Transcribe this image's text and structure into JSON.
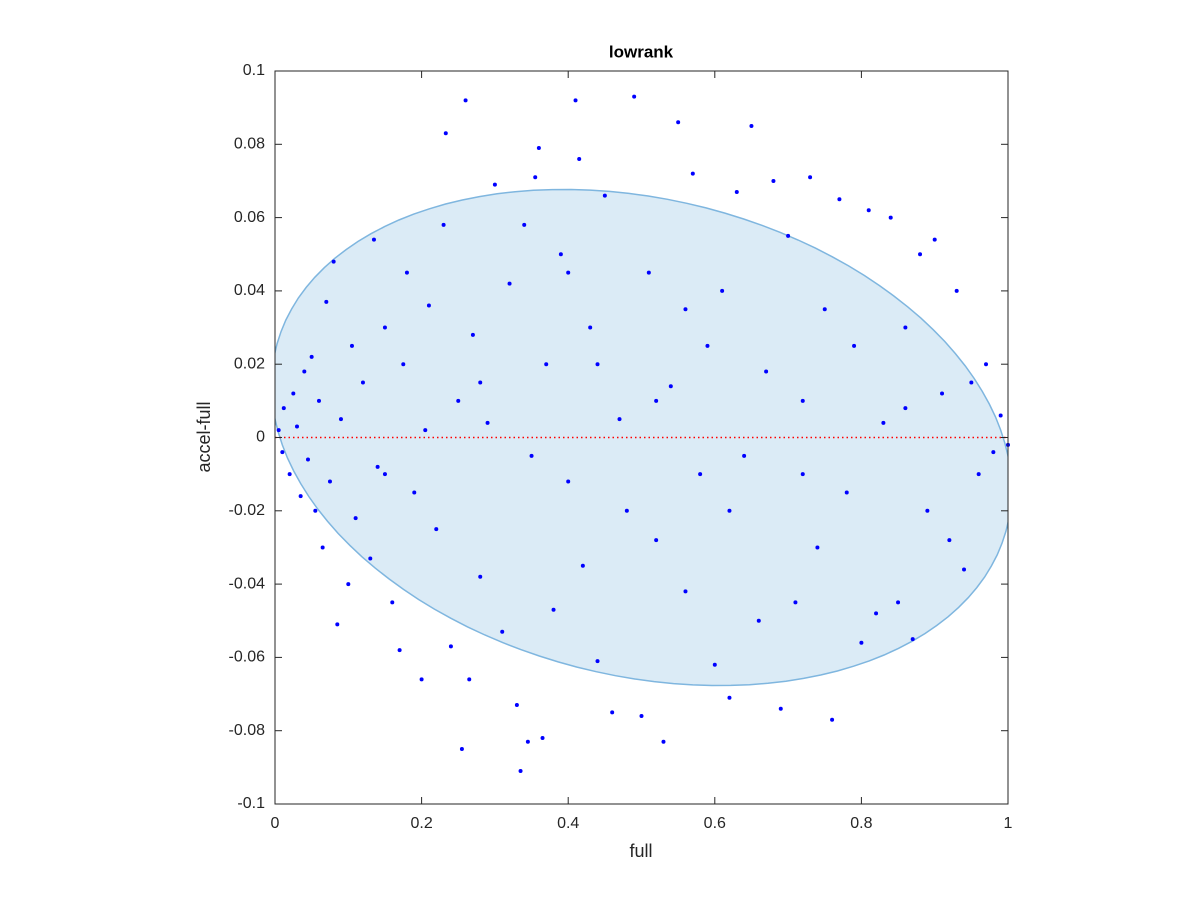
{
  "chart_data": {
    "type": "scatter",
    "title": "lowrank",
    "x_label": "full",
    "y_label": "accel-full",
    "xlim": [
      0,
      1
    ],
    "xticks": [
      0,
      0.2,
      0.4,
      0.6,
      0.8,
      1
    ],
    "ylim": [
      -0.1,
      0.1
    ],
    "yticks": [
      -0.1,
      -0.08,
      -0.06,
      -0.04,
      -0.02,
      0,
      0.02,
      0.04,
      0.06,
      0.08,
      0.1
    ],
    "color": "#0000ff",
    "reference_line": {
      "y": 0,
      "color": "#ff0000"
    },
    "ellipse": {
      "center": [
        0.5,
        0
      ],
      "u": [
        0.5,
        -0.005
      ],
      "v": [
        -0.07,
        0.0675
      ],
      "color": "#7fb6df"
    },
    "x": [
      0.005,
      0.01,
      0.012,
      0.02,
      0.025,
      0.03,
      0.035,
      0.04,
      0.045,
      0.05,
      0.055,
      0.06,
      0.065,
      0.07,
      0.075,
      0.08,
      0.085,
      0.09,
      0.1,
      0.105,
      0.11,
      0.12,
      0.13,
      0.135,
      0.14,
      0.15,
      0.16,
      0.17,
      0.175,
      0.18,
      0.19,
      0.2,
      0.205,
      0.21,
      0.22,
      0.23,
      0.233,
      0.24,
      0.25,
      0.255,
      0.26,
      0.265,
      0.27,
      0.28,
      0.29,
      0.3,
      0.31,
      0.32,
      0.33,
      0.335,
      0.34,
      0.345,
      0.355,
      0.36,
      0.365,
      0.37,
      0.38,
      0.39,
      0.4,
      0.41,
      0.415,
      0.42,
      0.43,
      0.44,
      0.45,
      0.46,
      0.47,
      0.48,
      0.49,
      0.5,
      0.51,
      0.52,
      0.53,
      0.54,
      0.55,
      0.56,
      0.57,
      0.58,
      0.59,
      0.6,
      0.61,
      0.62,
      0.63,
      0.64,
      0.65,
      0.66,
      0.67,
      0.68,
      0.69,
      0.7,
      0.71,
      0.72,
      0.73,
      0.74,
      0.75,
      0.76,
      0.77,
      0.78,
      0.79,
      0.8,
      0.81,
      0.82,
      0.83,
      0.84,
      0.85,
      0.86,
      0.87,
      0.88,
      0.89,
      0.9,
      0.91,
      0.92,
      0.93,
      0.94,
      0.95,
      0.96,
      0.97,
      0.98,
      0.99,
      1.0,
      0.52,
      0.44,
      0.35,
      0.62,
      0.28,
      0.72,
      0.15,
      0.86,
      0.56,
      0.4
    ],
    "y": [
      0.002,
      -0.004,
      0.008,
      -0.01,
      0.012,
      0.003,
      -0.016,
      0.018,
      -0.006,
      0.022,
      -0.02,
      0.01,
      -0.03,
      0.037,
      -0.012,
      0.048,
      -0.051,
      0.005,
      -0.04,
      0.025,
      -0.022,
      0.015,
      -0.033,
      0.054,
      -0.008,
      0.03,
      -0.045,
      -0.058,
      0.02,
      0.045,
      -0.015,
      -0.066,
      0.002,
      0.036,
      -0.025,
      0.058,
      0.083,
      -0.057,
      0.01,
      -0.085,
      0.092,
      -0.066,
      0.028,
      -0.038,
      0.004,
      0.069,
      -0.053,
      0.042,
      -0.073,
      -0.091,
      0.058,
      -0.083,
      0.071,
      0.079,
      -0.082,
      0.02,
      -0.047,
      0.05,
      -0.012,
      0.092,
      0.076,
      -0.035,
      0.03,
      -0.061,
      0.066,
      -0.075,
      0.005,
      -0.02,
      0.093,
      -0.076,
      0.045,
      -0.028,
      -0.083,
      0.014,
      0.086,
      -0.042,
      0.072,
      -0.01,
      0.025,
      -0.062,
      0.04,
      -0.071,
      0.067,
      -0.005,
      0.085,
      -0.05,
      0.018,
      0.07,
      -0.074,
      0.055,
      -0.045,
      0.01,
      0.071,
      -0.03,
      0.035,
      -0.077,
      0.065,
      -0.015,
      0.025,
      -0.056,
      0.062,
      -0.048,
      0.004,
      0.06,
      -0.045,
      0.03,
      -0.055,
      0.05,
      -0.02,
      0.054,
      0.012,
      -0.028,
      0.04,
      -0.036,
      0.015,
      -0.01,
      0.02,
      -0.004,
      0.006,
      -0.002,
      0.01,
      0.02,
      -0.005,
      -0.02,
      0.015,
      -0.01,
      -0.01,
      0.008,
      0.035,
      0.045
    ]
  }
}
